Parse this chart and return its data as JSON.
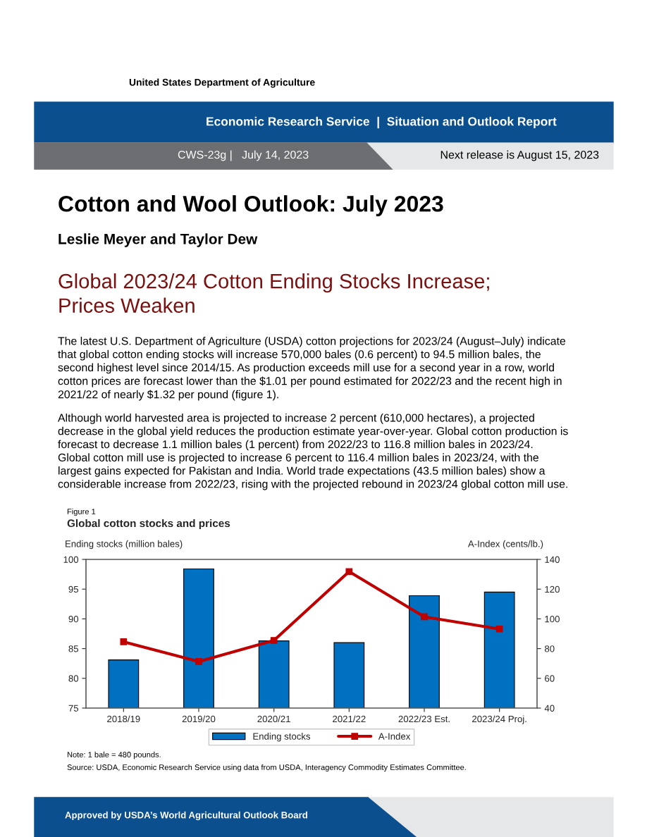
{
  "chart_data": {
    "type": "bar",
    "title": "Global cotton stocks and prices",
    "ylabel": "Ending stocks (million bales)",
    "y2label": "A-Index (cents/lb.)",
    "categories": [
      "2018/19",
      "2019/20",
      "2020/21",
      "2021/22",
      "2022/23 Est.",
      "2023/24 Proj."
    ],
    "series": [
      {
        "name": "Ending stocks",
        "color": "#0070c0",
        "values": [
          83.1,
          98.4,
          86.3,
          86.0,
          93.9,
          94.5
        ]
      },
      {
        "name": "A-Index",
        "type": "line",
        "axis": "y2",
        "color": "#c00000",
        "marker": "square",
        "values": [
          84.6,
          71.3,
          85.5,
          131.8,
          101.4,
          93.2
        ]
      }
    ],
    "ylim": [
      75,
      100
    ],
    "yticks": [
      75,
      80,
      85,
      90,
      95,
      100
    ],
    "y2lim": [
      40,
      140
    ],
    "y2ticks": [
      40,
      60,
      80,
      100,
      120,
      140
    ],
    "grid": false,
    "legend": "bottom",
    "annotations": [
      "United States Department of Agriculture",
      "Economic Research Service  |  Situation and Outlook Report",
      "CWS-23g |   July 14, 2023",
      "Next release is August 15, 2023",
      "Cotton and Wool Outlook: July 2023",
      "Leslie Meyer and Taylor Dew",
      "Global 2023/24 Cotton Ending Stocks Increase;\nPrices Weaken",
      "The latest U.S. Department of Agriculture (USDA) cotton projections for 2023/24 (August–July) indicate\nthat global cotton ending stocks will increase 570,000 bales (0.6 percent) to 94.5 million bales, the\nsecond highest level since 2014/15. As production exceeds mill use for a second year in a row, world\ncotton prices are forecast lower than the $1.01 per pound estimated for 2022/23 and the recent high in\n2021/22 of nearly $1.32 per pound (figure 1).",
      "Although world harvested area is projected to increase 2 percent (610,000 hectares), a projected\ndecrease in the global yield reduces the production estimate year-over-year. Global cotton production is\nforecast to decrease 1.1 million bales (1 percent) from 2022/23 to 116.8 million bales in 2023/24.\nGlobal cotton mill use is projected to increase 6 percent to 116.4 million bales in 2023/24, with the\nlargest gains expected for Pakistan and India. World trade expectations (43.5 million bales) show a\nconsiderable increase from 2022/23, rising with the projected rebound in 2023/24 global cotton mill use.",
      "Figure 1",
      "Note: 1 bale = 480 pounds.",
      "Source: USDA, Economic Research Service using data from USDA, Interagency Commodity Estimates Committee.",
      "Approved by USDA’s World Agricultural Outlook Board"
    ]
  }
}
